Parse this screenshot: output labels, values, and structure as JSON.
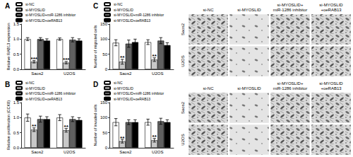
{
  "chart_data": [
    {
      "type": "bar",
      "title": "A",
      "ylabel": "Relative RAB13 expression",
      "categories": [
        "Saos2",
        "U2OS"
      ],
      "series": [
        {
          "name": "si-NC",
          "color": "#ffffff",
          "values": [
            1.0,
            1.0
          ],
          "errors": [
            0.05,
            0.04
          ]
        },
        {
          "name": "si-MYOSLID",
          "color": "#c8c8c8",
          "values": [
            0.25,
            0.22
          ],
          "errors": [
            0.04,
            0.04
          ]
        },
        {
          "name": "si-MYOSLID+miR-1286 inhibitor",
          "color": "#606060",
          "values": [
            1.0,
            0.98
          ],
          "errors": [
            0.05,
            0.07
          ]
        },
        {
          "name": "si-MYOSLID+oeRAB13",
          "color": "#000000",
          "values": [
            0.95,
            0.95
          ],
          "errors": [
            0.06,
            0.06
          ]
        }
      ],
      "annotations": [
        {
          "series": "si-MYOSLID",
          "category": "Saos2",
          "text": "***"
        },
        {
          "series": "si-MYOSLID",
          "category": "U2OS",
          "text": "***"
        }
      ],
      "ylim": [
        0,
        1.5
      ],
      "yticks": [
        {
          "value": 0,
          "label": "0.0"
        },
        0.5,
        {
          "value": 1,
          "label": "1.0"
        },
        1.5
      ],
      "legend": "top-left",
      "grid": false
    },
    {
      "type": "bar",
      "title": "B",
      "ylabel": "Relative proliferation (CCK8)",
      "categories": [
        "Saos2",
        "U2OS"
      ],
      "series": [
        {
          "name": "si-NC",
          "color": "#ffffff",
          "values": [
            1.0,
            1.0
          ],
          "errors": [
            0.12,
            0.1
          ]
        },
        {
          "name": "si-MYOSLID",
          "color": "#c8c8c8",
          "values": [
            0.6,
            0.58
          ],
          "errors": [
            0.06,
            0.06
          ]
        },
        {
          "name": "si-MYOSLID+miR-1286 inhibitor",
          "color": "#606060",
          "values": [
            0.95,
            0.95
          ],
          "errors": [
            0.1,
            0.08
          ]
        },
        {
          "name": "si-MYOSLID+oeRAB13",
          "color": "#000000",
          "values": [
            0.95,
            0.92
          ],
          "errors": [
            0.08,
            0.08
          ]
        }
      ],
      "annotations": [
        {
          "series": "si-MYOSLID",
          "category": "Saos2",
          "text": "**"
        },
        {
          "series": "si-MYOSLID",
          "category": "U2OS",
          "text": "**"
        }
      ],
      "ylim": [
        0,
        1.5
      ],
      "yticks": [
        {
          "value": 0,
          "label": "0.0"
        },
        0.5,
        {
          "value": 1,
          "label": "1.0"
        },
        1.5
      ],
      "legend": "top-left",
      "grid": false
    },
    {
      "type": "bar",
      "title": "C",
      "ylabel": "Number of migrated cells",
      "categories": [
        "Saos2",
        "U2OS"
      ],
      "series": [
        {
          "name": "si-NC",
          "color": "#ffffff",
          "values": [
            88,
            90
          ],
          "errors": [
            10,
            8
          ]
        },
        {
          "name": "si-MYOSLID",
          "color": "#c8c8c8",
          "values": [
            25,
            32
          ],
          "errors": [
            8,
            6
          ]
        },
        {
          "name": "si-MYOSLID+miR-1286 inhibitor",
          "color": "#606060",
          "values": [
            85,
            95
          ],
          "errors": [
            12,
            10
          ]
        },
        {
          "name": "si-MYOSLID+oeRAB13",
          "color": "#000000",
          "values": [
            90,
            80
          ],
          "errors": [
            10,
            8
          ]
        }
      ],
      "annotations": [
        {
          "series": "si-MYOSLID",
          "category": "Saos2",
          "text": "**"
        },
        {
          "series": "si-MYOSLID",
          "category": "U2OS",
          "text": "**"
        }
      ],
      "ylim": [
        0,
        150
      ],
      "yticks": [
        0,
        50,
        100,
        150
      ],
      "legend": "top-left",
      "grid": false
    },
    {
      "type": "bar",
      "title": "D",
      "ylabel": "Number of invaded cells",
      "categories": [
        "Saos2",
        "U2OS"
      ],
      "series": [
        {
          "name": "si-NC",
          "color": "#ffffff",
          "values": [
            85,
            85
          ],
          "errors": [
            12,
            10
          ]
        },
        {
          "name": "si-MYOSLID",
          "color": "#c8c8c8",
          "values": [
            22,
            25
          ],
          "errors": [
            6,
            6
          ]
        },
        {
          "name": "si-MYOSLID+miR-1286 inhibitor",
          "color": "#606060",
          "values": [
            85,
            88
          ],
          "errors": [
            8,
            10
          ]
        },
        {
          "name": "si-MYOSLID+oeRAB13",
          "color": "#000000",
          "values": [
            85,
            85
          ],
          "errors": [
            8,
            8
          ]
        }
      ],
      "annotations": [
        {
          "series": "si-MYOSLID",
          "category": "Saos2",
          "text": "**"
        },
        {
          "series": "si-MYOSLID",
          "category": "U2OS",
          "text": "**"
        }
      ],
      "ylim": [
        0,
        150
      ],
      "yticks": [
        0,
        50,
        100,
        150
      ],
      "legend": "top-left",
      "grid": false
    }
  ],
  "image_panels": [
    {
      "columns": [
        "si-NC",
        "si-MYOSLID",
        "si-MYOSLID+\nmiR-1286 inhibitor",
        "si-MYOSLID\n+oeRAB13"
      ],
      "rows": [
        "Saos2",
        "U2OS"
      ]
    },
    {
      "columns": [
        "si-NC",
        "si-MYOSLID",
        "si-MYOSLID+\nmiR-1286 inhibitor",
        "si-MYOSLID\n+oeRAB13"
      ],
      "rows": [
        "Saos2",
        "U2OS"
      ]
    }
  ]
}
